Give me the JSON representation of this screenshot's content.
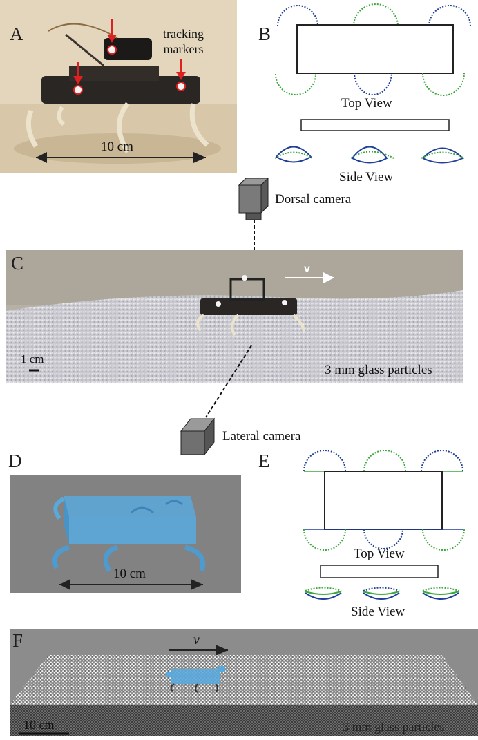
{
  "panels": {
    "a": {
      "letter": "A",
      "annotation": "tracking\nmarkers",
      "scale_label": "10 cm"
    },
    "b": {
      "letter": "B",
      "top_view": "Top View",
      "side_view": "Side View"
    },
    "cameras": {
      "dorsal": "Dorsal camera",
      "lateral": "Lateral camera"
    },
    "c": {
      "letter": "C",
      "velocity": "v",
      "scale_label": "1 cm",
      "medium": "3 mm glass particles"
    },
    "d": {
      "letter": "D",
      "scale_label": "10 cm"
    },
    "e": {
      "letter": "E",
      "top_view": "Top View",
      "side_view": "Side View"
    },
    "f": {
      "letter": "F",
      "velocity": "v",
      "scale_label": "10 cm",
      "medium": "3 mm glass particles"
    }
  },
  "colors": {
    "blue_leg": "#1f3f9a",
    "green_leg": "#3aa83a",
    "sim_blue": "#5aa9dc",
    "marker_red": "#e02020"
  }
}
